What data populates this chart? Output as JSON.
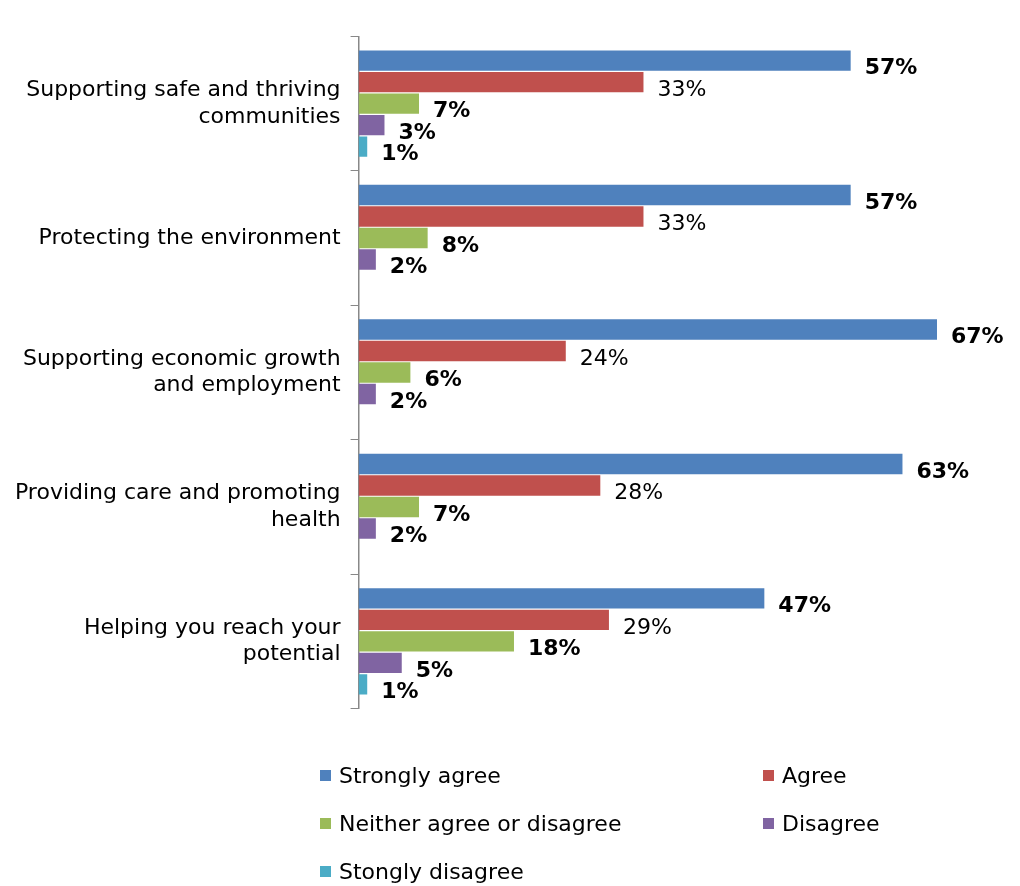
{
  "chart_data": {
    "type": "bar",
    "orientation": "horizontal",
    "categories": [
      "Supporting safe and thriving communities",
      "Protecting the environment",
      "Supporting economic growth and employment",
      "Providing care and promoting health",
      "Helping you reach your potential"
    ],
    "series": [
      {
        "name": "Strongly agree",
        "color": "#4f81bd",
        "values": [
          57,
          57,
          67,
          63,
          47
        ],
        "value_labels": [
          "57%",
          "57%",
          "67%",
          "63%",
          "47%"
        ]
      },
      {
        "name": "Agree",
        "color": "#c0504d",
        "values": [
          33,
          33,
          24,
          28,
          29
        ],
        "value_labels": [
          "33%",
          "33%",
          "24%",
          "28%",
          "29%"
        ]
      },
      {
        "name": "Neither agree or disagree",
        "color": "#9bbb59",
        "values": [
          7,
          8,
          6,
          7,
          18
        ],
        "value_labels": [
          "7%",
          "8%",
          "6%",
          "7%",
          "18%"
        ]
      },
      {
        "name": "Disagree",
        "color": "#8064a2",
        "values": [
          3,
          2,
          2,
          2,
          5
        ],
        "value_labels": [
          "3%",
          "2%",
          "2%",
          "2%",
          "5%"
        ]
      },
      {
        "name": "Stongly disagree",
        "color": "#4bacc6",
        "values": [
          1,
          null,
          null,
          null,
          1
        ],
        "value_labels": [
          "1%",
          null,
          null,
          null,
          "1%"
        ]
      }
    ],
    "legend": "bottom"
  }
}
